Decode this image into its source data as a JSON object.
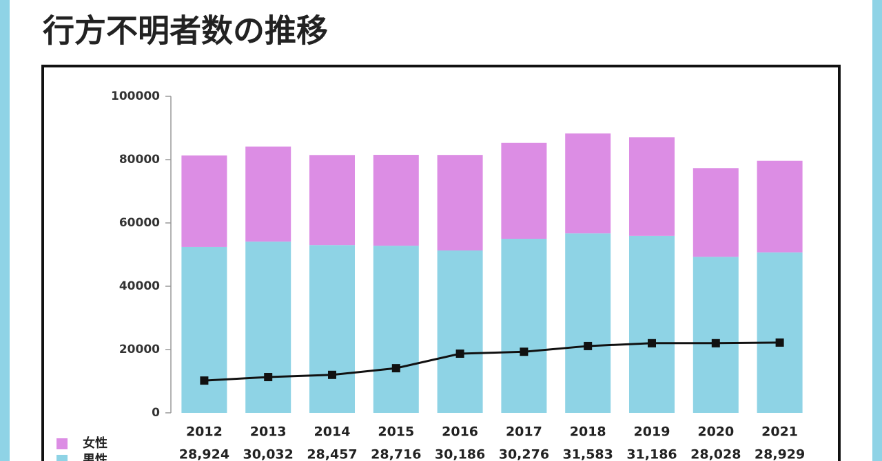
{
  "chart_data": {
    "type": "bar",
    "stacked": true,
    "title": "行方不明者数の推移",
    "categories": [
      "2012",
      "2013",
      "2014",
      "2015",
      "2016",
      "2017",
      "2018",
      "2019",
      "2020",
      "2021"
    ],
    "series": [
      {
        "name": "男性",
        "color": "#8ed3e5",
        "values": [
          52400,
          54100,
          53000,
          52800,
          51300,
          55000,
          56700,
          55900,
          49300,
          50700
        ]
      },
      {
        "name": "女性",
        "color": "#dc8de4",
        "values": [
          28924,
          30032,
          28457,
          28716,
          30186,
          30276,
          31583,
          31186,
          28028,
          28929
        ],
        "value_labels": [
          "28,924",
          "30,032",
          "28,457",
          "28,716",
          "30,186",
          "30,276",
          "31,583",
          "31,186",
          "28,028",
          "28,929"
        ]
      },
      {
        "type": "line",
        "color": "#111111",
        "values": [
          10200,
          11300,
          12000,
          14100,
          18700,
          19300,
          21100,
          22000,
          22000,
          22200
        ]
      }
    ],
    "ylim": [
      0,
      100000
    ],
    "yticks": [
      0,
      20000,
      40000,
      60000,
      80000,
      100000
    ],
    "legend": "bottom-left"
  }
}
